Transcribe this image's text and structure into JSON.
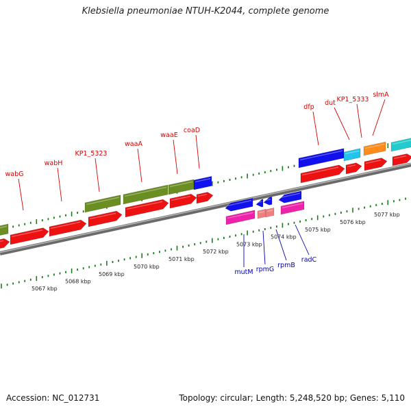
{
  "title": "Klebsiella pneumoniae NTUH-K2044, complete genome",
  "accession": "Accession: NC_012731",
  "summary": "Topology: circular; Length: 5,248,520 bp; Genes: 5,110",
  "colors": {
    "backbone": "#8a8a8a",
    "tick": "#1a7a1a",
    "label_forward": "#d40000",
    "label_reverse": "#0000b0",
    "red": "#ee1111",
    "olive": "#6b8e23",
    "blue": "#1111ee",
    "cyan": "#22c4ee",
    "orange": "#ff8c1a",
    "teal": "#22cccc",
    "magenta": "#ee22aa",
    "pink": "#f08080"
  },
  "scale": {
    "labels": [
      "5067 kbp",
      "5068 kbp",
      "5069 kbp",
      "5070 kbp",
      "5071 kbp",
      "5072 kbp",
      "5073 kbp",
      "5074 kbp",
      "5075 kbp",
      "5076 kbp",
      "5077 kbp"
    ]
  },
  "forward_labels": [
    "wabG",
    "wabH",
    "KP1_5323",
    "waaA",
    "waaE",
    "coaD",
    "dfp",
    "dut",
    "KP1_5333",
    "slmA"
  ],
  "reverse_labels": [
    "mutM",
    "rpmG",
    "rpmB",
    "radC"
  ]
}
